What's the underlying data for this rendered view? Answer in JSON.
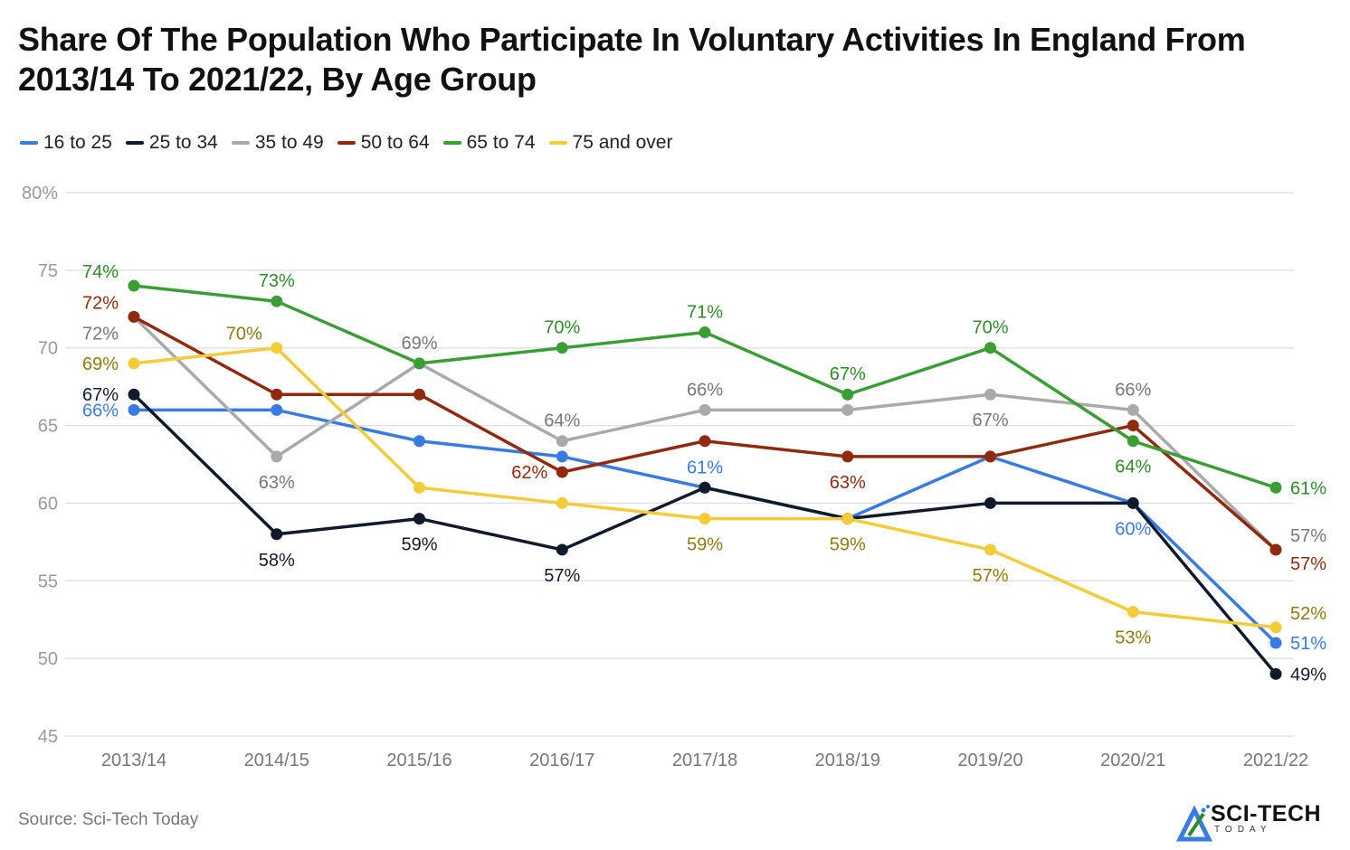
{
  "chart_data": {
    "type": "line",
    "title": "Share Of The Population Who Participate In Voluntary Activities In England From 2013/14 To 2021/22, By Age Group",
    "xlabel": "",
    "ylabel": "",
    "ylim": [
      45,
      80
    ],
    "yticks": [
      80,
      75,
      70,
      65,
      60,
      55,
      50,
      45
    ],
    "ytick_labels": [
      "80%",
      "75",
      "70",
      "65",
      "60",
      "55",
      "50",
      "45"
    ],
    "grid": true,
    "legend_position": "top-left",
    "categories": [
      "2013/14",
      "2014/15",
      "2015/16",
      "2016/17",
      "2017/18",
      "2018/19",
      "2019/20",
      "2020/21",
      "2021/22"
    ],
    "series": [
      {
        "name": "16 to 25",
        "color": "#3a7be3",
        "label_color": "#3a7be3",
        "values": [
          66,
          66,
          64,
          63,
          61,
          59,
          63,
          60,
          51
        ],
        "labels": [
          "66%",
          null,
          null,
          null,
          "61%",
          null,
          null,
          "60%",
          "51%"
        ],
        "label_pos": [
          "left",
          null,
          null,
          null,
          "above",
          null,
          null,
          "below",
          "right"
        ]
      },
      {
        "name": "25 to 34",
        "color": "#111a2b",
        "label_color": "#111a2b",
        "values": [
          67,
          58,
          59,
          57,
          61,
          59,
          60,
          60,
          49
        ],
        "labels": [
          "67%",
          "58%",
          "59%",
          "57%",
          null,
          null,
          null,
          null,
          "49%"
        ],
        "label_pos": [
          "left",
          "below",
          "below",
          "below",
          null,
          null,
          null,
          null,
          "right"
        ]
      },
      {
        "name": "35 to 49",
        "color": "#aaaaaa",
        "label_color": "#777777",
        "values": [
          72,
          63,
          69,
          64,
          66,
          66,
          67,
          66,
          57
        ],
        "labels": [
          "72%",
          "63%",
          "69%",
          "64%",
          "66%",
          null,
          "67%",
          "66%",
          "57%"
        ],
        "label_pos": [
          "left-below",
          "below",
          "above",
          "above",
          "above",
          null,
          "below",
          "above",
          "right-above"
        ]
      },
      {
        "name": "50 to 64",
        "color": "#8f2a0e",
        "label_color": "#8f2a0e",
        "values": [
          72,
          67,
          67,
          62,
          64,
          63,
          63,
          65,
          57
        ],
        "labels": [
          "72%",
          null,
          null,
          "62%",
          null,
          "63%",
          null,
          null,
          "57%"
        ],
        "label_pos": [
          "left-above",
          null,
          null,
          "left",
          null,
          "below",
          null,
          null,
          "right-below"
        ]
      },
      {
        "name": "65 to 74",
        "color": "#3a9e35",
        "label_color": "#2e8a2a",
        "values": [
          74,
          73,
          69,
          70,
          71,
          67,
          70,
          64,
          61
        ],
        "labels": [
          "74%",
          "73%",
          null,
          "70%",
          "71%",
          "67%",
          "70%",
          "64%",
          "61%"
        ],
        "label_pos": [
          "left-above",
          "above",
          null,
          "above",
          "above",
          "above",
          "above",
          "below",
          "right"
        ]
      },
      {
        "name": "75 and over",
        "color": "#f2cc3a",
        "label_color": "#8f7a10",
        "values": [
          69,
          70,
          61,
          60,
          59,
          59,
          57,
          53,
          52
        ],
        "labels": [
          "69%",
          "70%",
          null,
          null,
          "59%",
          "59%",
          "57%",
          "53%",
          "52%"
        ],
        "label_pos": [
          "left",
          "left-above",
          null,
          null,
          "below",
          "below",
          "below",
          "below",
          "right-above"
        ]
      }
    ]
  },
  "source": "Source: Sci-Tech Today",
  "logo": {
    "name": "SCI-TECH",
    "subtitle": "TODAY"
  }
}
